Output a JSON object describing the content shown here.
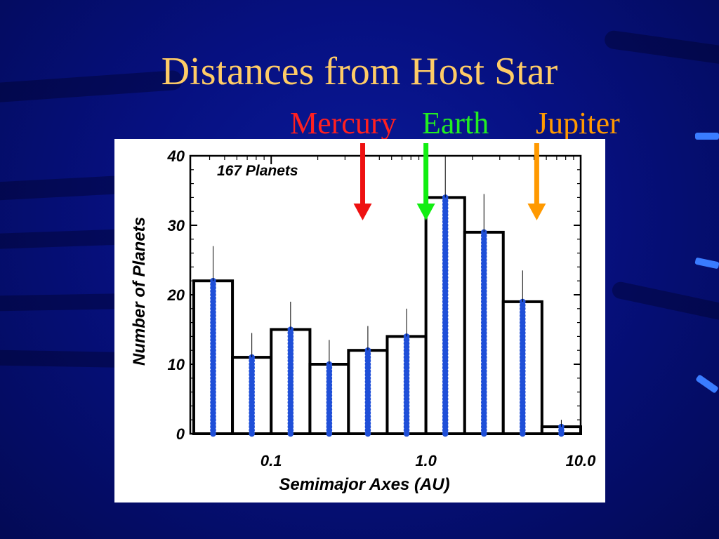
{
  "slide": {
    "title": "Distances from Host Star",
    "planet_labels": [
      {
        "name": "Mercury",
        "color": "#ff2020"
      },
      {
        "name": "Earth",
        "color": "#22ee22"
      },
      {
        "name": "Jupiter",
        "color": "#ff9900"
      }
    ]
  },
  "colors": {
    "title": "#ffcc66",
    "background": "#061080",
    "dots": "#1f4fd8",
    "mercury_arrow": "#ee1111",
    "earth_arrow": "#11ee11",
    "jupiter_arrow": "#ff9900"
  },
  "chart_data": {
    "type": "bar",
    "title": "",
    "annotation": "167 Planets",
    "xlabel": "Semimajor Axes   (AU)",
    "ylabel": "Number of Planets",
    "x_scale": "log",
    "xlim": [
      0.03,
      10.0
    ],
    "ylim": [
      0,
      40
    ],
    "yticks": [
      0,
      10,
      20,
      30,
      40
    ],
    "xtick_labels": [
      "0.1",
      "1.0",
      "10.0"
    ],
    "bin_edges": [
      0.0316,
      0.0562,
      0.1,
      0.178,
      0.316,
      0.562,
      1.0,
      1.78,
      3.16,
      5.62,
      10.0
    ],
    "values": [
      22,
      11,
      15,
      10,
      12,
      14,
      34,
      29,
      19,
      1
    ],
    "error_top": [
      27,
      14.5,
      19,
      13.5,
      15.5,
      18,
      40,
      34.5,
      23.5,
      2
    ],
    "markers": [
      {
        "name": "Mercury",
        "x": 0.39
      },
      {
        "name": "Earth",
        "x": 1.0
      },
      {
        "name": "Jupiter",
        "x": 5.2
      }
    ]
  }
}
